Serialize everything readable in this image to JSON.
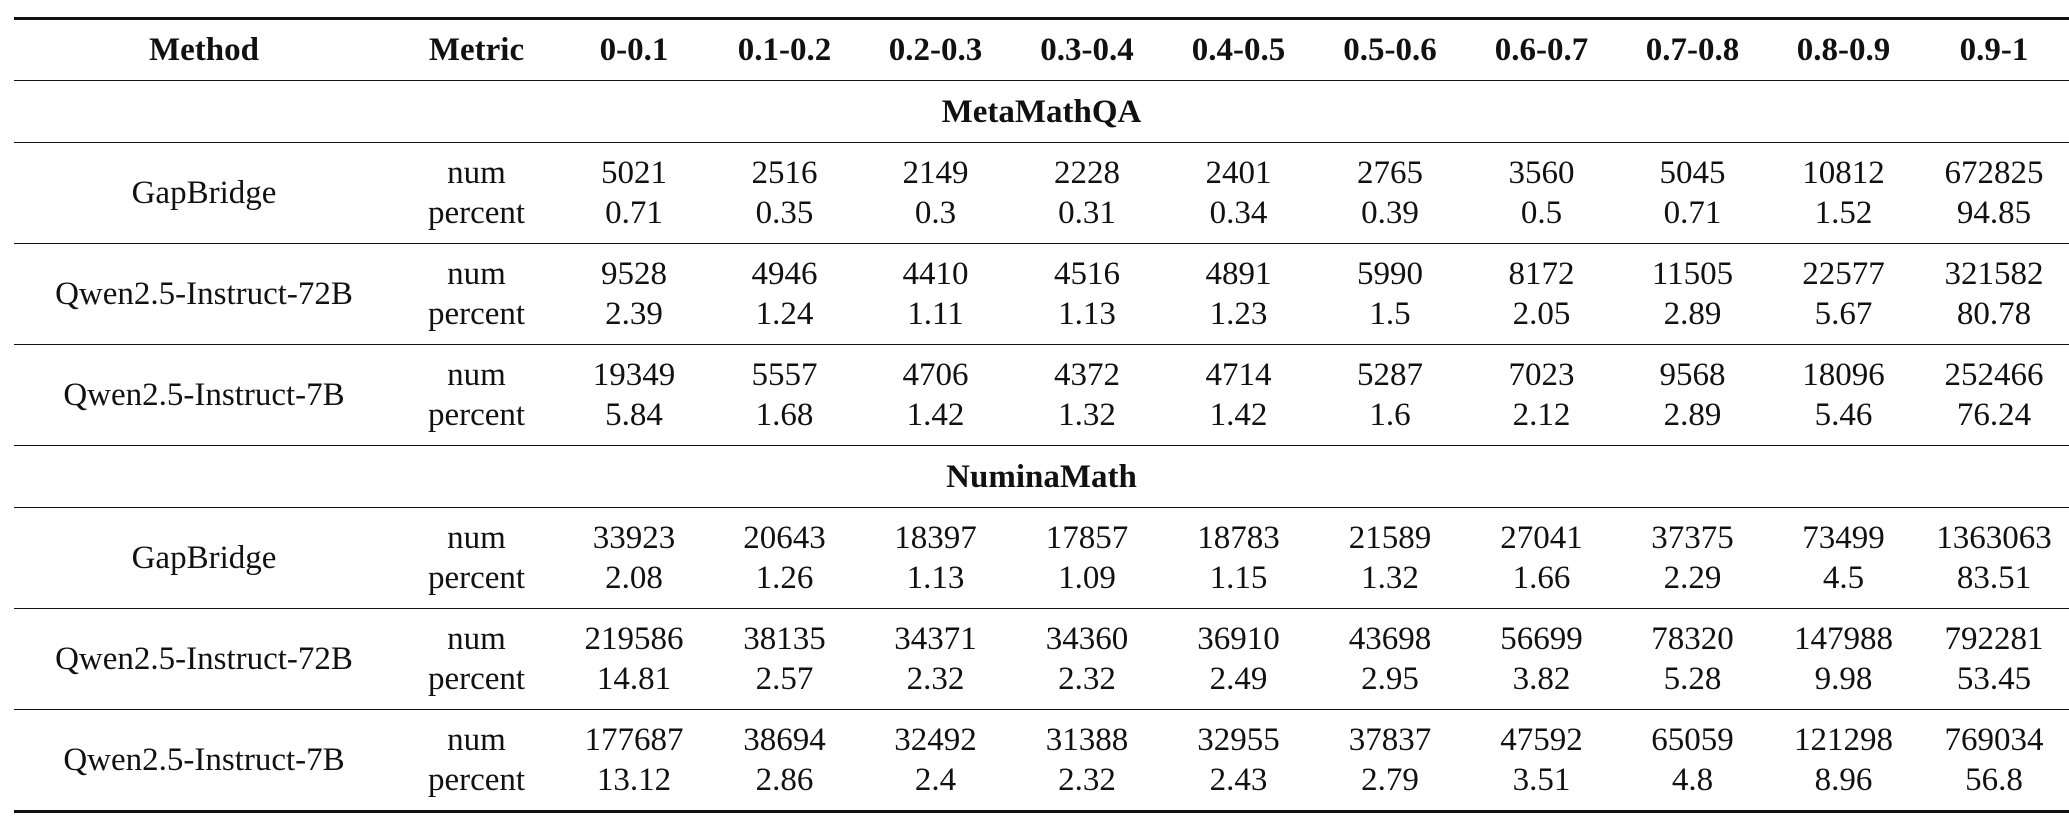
{
  "header": {
    "method": "Method",
    "metric": "Metric",
    "bins": [
      "0-0.1",
      "0.1-0.2",
      "0.2-0.3",
      "0.3-0.4",
      "0.4-0.5",
      "0.5-0.6",
      "0.6-0.7",
      "0.7-0.8",
      "0.8-0.9",
      "0.9-1"
    ]
  },
  "metric_labels": {
    "num": "num",
    "percent": "percent"
  },
  "sections": [
    {
      "name": "MetaMathQA",
      "rows": [
        {
          "method": "GapBridge",
          "num": [
            "5021",
            "2516",
            "2149",
            "2228",
            "2401",
            "2765",
            "3560",
            "5045",
            "10812",
            "672825"
          ],
          "percent": [
            "0.71",
            "0.35",
            "0.3",
            "0.31",
            "0.34",
            "0.39",
            "0.5",
            "0.71",
            "1.52",
            "94.85"
          ]
        },
        {
          "method": "Qwen2.5-Instruct-72B",
          "num": [
            "9528",
            "4946",
            "4410",
            "4516",
            "4891",
            "5990",
            "8172",
            "11505",
            "22577",
            "321582"
          ],
          "percent": [
            "2.39",
            "1.24",
            "1.11",
            "1.13",
            "1.23",
            "1.5",
            "2.05",
            "2.89",
            "5.67",
            "80.78"
          ]
        },
        {
          "method": "Qwen2.5-Instruct-7B",
          "num": [
            "19349",
            "5557",
            "4706",
            "4372",
            "4714",
            "5287",
            "7023",
            "9568",
            "18096",
            "252466"
          ],
          "percent": [
            "5.84",
            "1.68",
            "1.42",
            "1.32",
            "1.42",
            "1.6",
            "2.12",
            "2.89",
            "5.46",
            "76.24"
          ]
        }
      ]
    },
    {
      "name": "NuminaMath",
      "rows": [
        {
          "method": "GapBridge",
          "num": [
            "33923",
            "20643",
            "18397",
            "17857",
            "18783",
            "21589",
            "27041",
            "37375",
            "73499",
            "1363063"
          ],
          "percent": [
            "2.08",
            "1.26",
            "1.13",
            "1.09",
            "1.15",
            "1.32",
            "1.66",
            "2.29",
            "4.5",
            "83.51"
          ]
        },
        {
          "method": "Qwen2.5-Instruct-72B",
          "num": [
            "219586",
            "38135",
            "34371",
            "34360",
            "36910",
            "43698",
            "56699",
            "78320",
            "147988",
            "792281"
          ],
          "percent": [
            "14.81",
            "2.57",
            "2.32",
            "2.32",
            "2.49",
            "2.95",
            "3.82",
            "5.28",
            "9.98",
            "53.45"
          ]
        },
        {
          "method": "Qwen2.5-Instruct-7B",
          "num": [
            "177687",
            "38694",
            "32492",
            "31388",
            "32955",
            "37837",
            "47592",
            "65059",
            "121298",
            "769034"
          ],
          "percent": [
            "13.12",
            "2.86",
            "2.4",
            "2.32",
            "2.43",
            "2.79",
            "3.51",
            "4.8",
            "8.96",
            "56.8"
          ]
        }
      ]
    }
  ]
}
